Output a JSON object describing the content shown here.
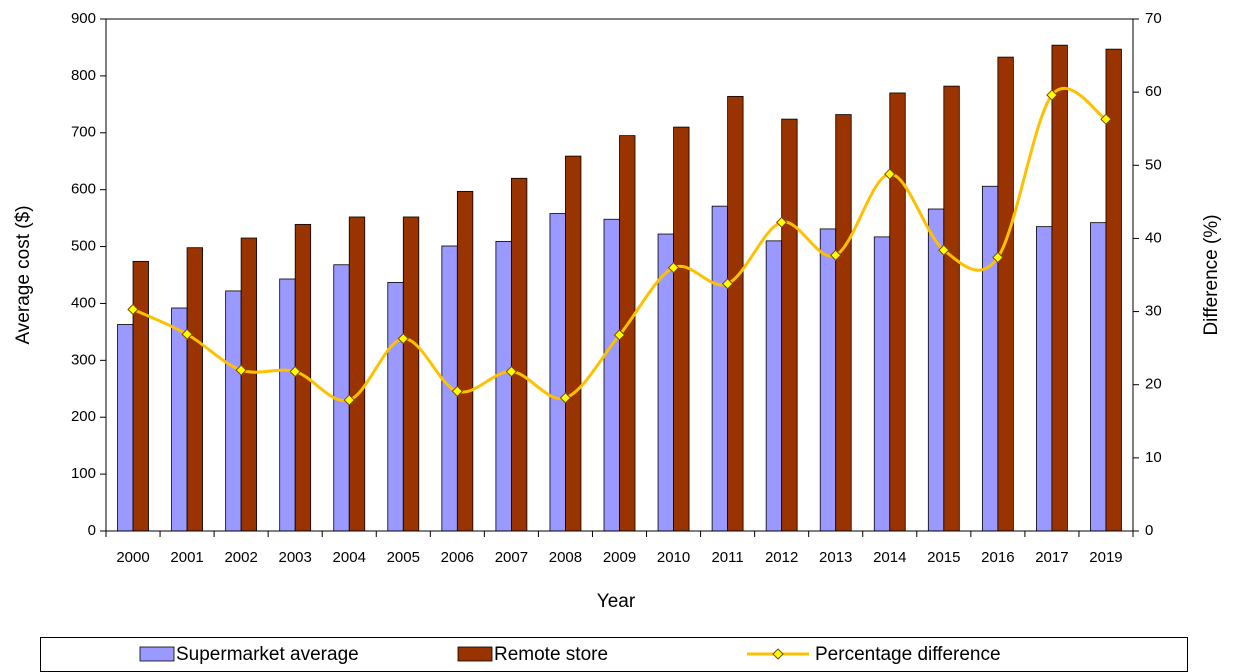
{
  "chart_data": {
    "type": "bar",
    "x_label": "Year",
    "y_label": "Average cost ($)",
    "y2_label": "Difference (%)",
    "categories": [
      "2000",
      "2001",
      "2002",
      "2003",
      "2004",
      "2005",
      "2006",
      "2007",
      "2008",
      "2009",
      "2010",
      "2011",
      "2012",
      "2013",
      "2014",
      "2015",
      "2016",
      "2017",
      "2019"
    ],
    "series": [
      {
        "name": "Supermarket average",
        "type": "bar",
        "color": "#9999ff",
        "values": [
          363,
          392,
          422,
          443,
          468,
          437,
          501,
          509,
          558,
          548,
          522,
          571,
          510,
          531,
          517,
          566,
          606,
          535,
          542
        ]
      },
      {
        "name": "Remote store",
        "type": "bar",
        "color": "#993300",
        "values": [
          474,
          498,
          515,
          539,
          552,
          552,
          597,
          620,
          659,
          695,
          710,
          764,
          724,
          732,
          770,
          782,
          833,
          854,
          847
        ]
      },
      {
        "name": "Percentage difference",
        "type": "line",
        "axis": "y2",
        "color": "#ffc000",
        "values": [
          30.3,
          26.9,
          22.0,
          21.8,
          17.9,
          26.3,
          19.1,
          21.8,
          18.2,
          26.8,
          36.0,
          33.8,
          42.2,
          37.7,
          48.8,
          38.4,
          37.4,
          59.6,
          56.3
        ]
      }
    ],
    "ylim": [
      0,
      900
    ],
    "yticks": [
      0,
      100,
      200,
      300,
      400,
      500,
      600,
      700,
      800,
      900
    ],
    "y2lim": [
      0,
      70
    ],
    "y2ticks": [
      0,
      10,
      20,
      30,
      40,
      50,
      60,
      70
    ],
    "legend": "bottom"
  }
}
